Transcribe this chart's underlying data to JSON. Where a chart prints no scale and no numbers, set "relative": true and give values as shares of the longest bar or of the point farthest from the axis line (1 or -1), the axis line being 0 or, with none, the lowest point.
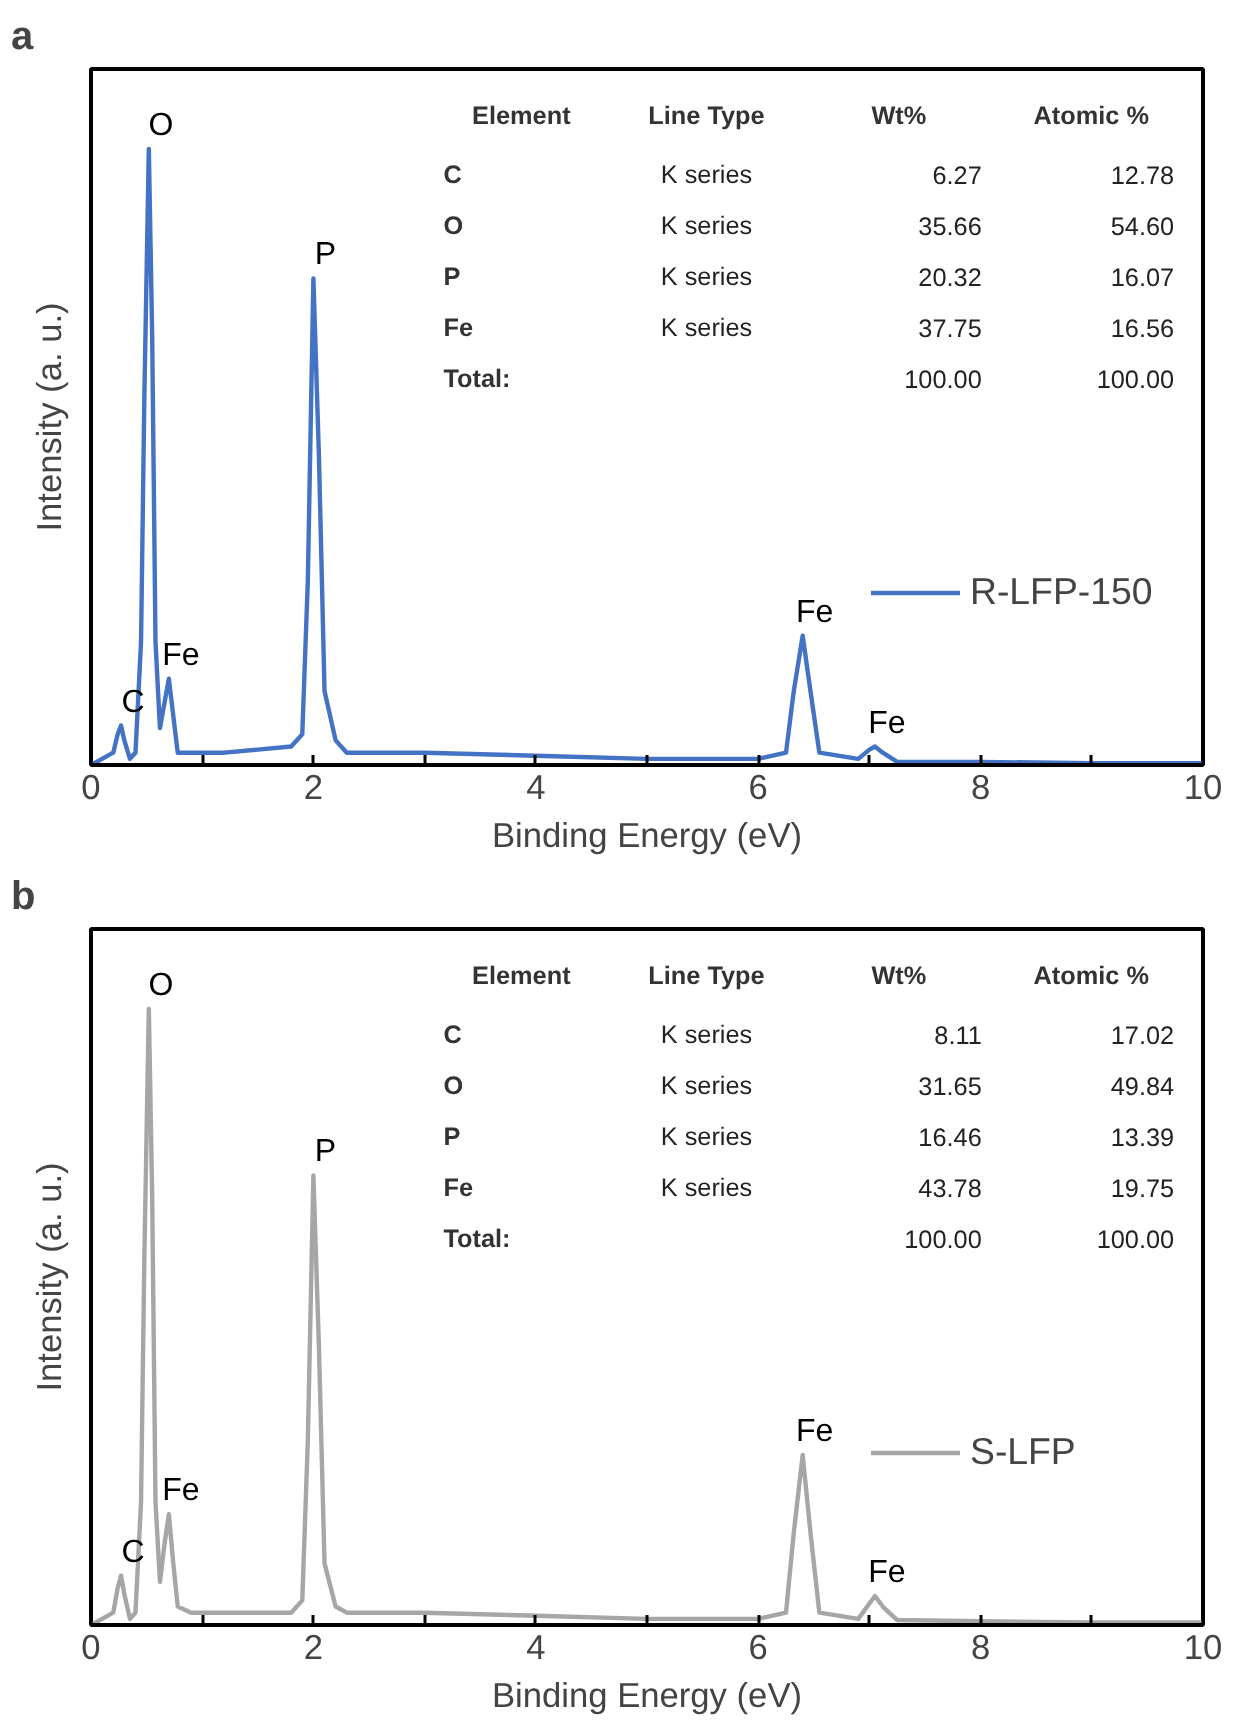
{
  "chart_data": [
    {
      "type": "line",
      "title": "a",
      "xlabel": "Binding Energy (eV)",
      "ylabel": "Intensity (a. u.)",
      "relative": true,
      "xlim": [
        0,
        10
      ],
      "xticks": [
        0,
        {
          "value": 1,
          "label": null
        },
        2,
        {
          "value": 3,
          "label": null
        },
        4,
        {
          "value": 5,
          "label": null
        },
        6,
        {
          "value": 7,
          "label": null
        },
        8,
        {
          "value": 9,
          "label": null
        },
        10
      ],
      "tick_labels": "x",
      "grid": false,
      "legend": "right",
      "line_style": "solid",
      "marker": "none",
      "x": [
        0,
        0.1,
        0.2,
        0.24,
        0.27,
        0.3,
        0.35,
        0.4,
        0.45,
        0.48,
        0.52,
        0.55,
        0.58,
        0.62,
        0.66,
        0.7,
        0.74,
        0.78,
        0.9,
        1.2,
        1.5,
        1.8,
        1.9,
        1.95,
        2.0,
        2.05,
        2.1,
        2.2,
        2.3,
        3,
        4,
        5,
        6,
        6.25,
        6.32,
        6.4,
        6.47,
        6.55,
        6.9,
        7.0,
        7.05,
        7.12,
        7.25,
        8,
        9,
        10
      ],
      "series": [
        {
          "name": "R-LFP-150",
          "color": "#4472c4",
          "values": [
            0,
            0.01,
            0.02,
            0.05,
            0.064,
            0.04,
            0.01,
            0.02,
            0.2,
            0.6,
            1,
            0.7,
            0.2,
            0.06,
            0.1,
            0.14,
            0.08,
            0.02,
            0.02,
            0.02,
            0.025,
            0.03,
            0.05,
            0.3,
            0.79,
            0.5,
            0.12,
            0.04,
            0.02,
            0.02,
            0.015,
            0.01,
            0.01,
            0.02,
            0.12,
            0.21,
            0.12,
            0.02,
            0.01,
            0.025,
            0.03,
            0.02,
            0.005,
            0.005,
            0.003,
            0.003
          ]
        }
      ],
      "annotations": [
        {
          "text": "C",
          "x": 0.27,
          "y": 0.064
        },
        {
          "text": "O",
          "x": 0.52,
          "y": 1
        },
        {
          "text": "Fe",
          "x": 0.7,
          "y": 0.14
        },
        {
          "text": "P",
          "x": 2.0,
          "y": 0.79
        },
        {
          "text": "Fe",
          "x": 6.4,
          "y": 0.21
        },
        {
          "text": "Fe",
          "x": 7.05,
          "y": 0.03
        }
      ]
    },
    {
      "type": "other",
      "categories": [
        "Element",
        "Line Type",
        "Wt%",
        "Atomic %"
      ],
      "y_categories": [
        "C",
        "O",
        "P",
        "Fe",
        "Total:"
      ],
      "cell_labels": [
        [
          "K series",
          "6.27",
          "12.78"
        ],
        [
          "K series",
          "35.66",
          "54.60"
        ],
        [
          "K series",
          "20.32",
          "16.07"
        ],
        [
          "K series",
          "37.75",
          "16.56"
        ],
        [
          null,
          "100.00",
          "100.00"
        ]
      ]
    },
    {
      "type": "line",
      "title": "b",
      "xlabel": "Binding Energy (eV)",
      "ylabel": "Intensity (a. u.)",
      "relative": true,
      "xlim": [
        0,
        10
      ],
      "xticks": [
        0,
        {
          "value": 1,
          "label": null
        },
        2,
        {
          "value": 3,
          "label": null
        },
        4,
        {
          "value": 5,
          "label": null
        },
        6,
        {
          "value": 7,
          "label": null
        },
        8,
        {
          "value": 9,
          "label": null
        },
        10
      ],
      "tick_labels": "x",
      "grid": false,
      "legend": "right",
      "line_style": "solid",
      "marker": "none",
      "x": [
        0,
        0.1,
        0.2,
        0.24,
        0.27,
        0.3,
        0.35,
        0.4,
        0.45,
        0.48,
        0.52,
        0.55,
        0.58,
        0.62,
        0.66,
        0.7,
        0.74,
        0.78,
        0.9,
        1.2,
        1.5,
        1.8,
        1.9,
        1.95,
        2.0,
        2.05,
        2.1,
        2.2,
        2.3,
        3,
        4,
        5,
        6,
        6.25,
        6.32,
        6.4,
        6.47,
        6.55,
        6.9,
        7.0,
        7.05,
        7.12,
        7.25,
        8,
        9,
        10
      ],
      "series": [
        {
          "name": "S-LFP",
          "color": "#a6a6a6",
          "values": [
            0,
            0.01,
            0.02,
            0.06,
            0.08,
            0.05,
            0.01,
            0.02,
            0.2,
            0.6,
            1,
            0.7,
            0.2,
            0.07,
            0.13,
            0.18,
            0.1,
            0.03,
            0.02,
            0.02,
            0.02,
            0.02,
            0.04,
            0.3,
            0.73,
            0.45,
            0.1,
            0.03,
            0.02,
            0.02,
            0.015,
            0.01,
            0.01,
            0.02,
            0.15,
            0.276,
            0.15,
            0.02,
            0.01,
            0.035,
            0.047,
            0.03,
            0.008,
            0.006,
            0.004,
            0.004
          ]
        }
      ],
      "annotations": [
        {
          "text": "C",
          "x": 0.27,
          "y": 0.08
        },
        {
          "text": "O",
          "x": 0.52,
          "y": 1
        },
        {
          "text": "Fe",
          "x": 0.7,
          "y": 0.18
        },
        {
          "text": "P",
          "x": 2.0,
          "y": 0.73
        },
        {
          "text": "Fe",
          "x": 6.4,
          "y": 0.276
        },
        {
          "text": "Fe",
          "x": 7.05,
          "y": 0.047
        }
      ]
    },
    {
      "type": "other",
      "categories": [
        "Element",
        "Line Type",
        "Wt%",
        "Atomic %"
      ],
      "y_categories": [
        "C",
        "O",
        "P",
        "Fe",
        "Total:"
      ],
      "cell_labels": [
        [
          "K series",
          "8.11",
          "17.02"
        ],
        [
          "K series",
          "31.65",
          "49.84"
        ],
        [
          "K series",
          "16.46",
          "13.39"
        ],
        [
          "K series",
          "43.78",
          "19.75"
        ],
        [
          null,
          "100.00",
          "100.00"
        ]
      ]
    }
  ]
}
